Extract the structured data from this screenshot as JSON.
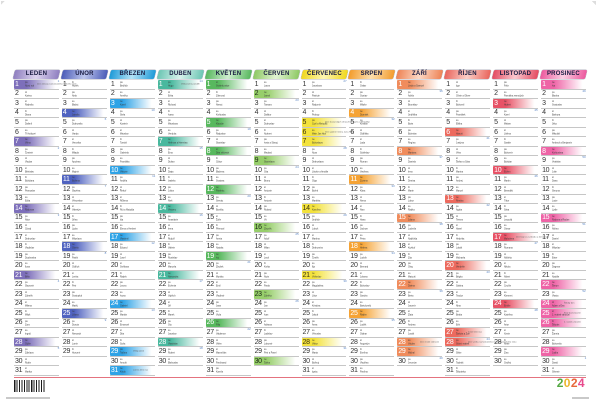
{
  "weekday_abbrs": [
    "po",
    "út",
    "st",
    "čt",
    "pá",
    "so",
    "ne"
  ],
  "footer": {
    "year": "2024",
    "digit_colors": [
      "#54a943",
      "#ecb52c",
      "#e8683a",
      "#e84a8c"
    ]
  },
  "months": [
    {
      "label": "LEDEN",
      "days": 31,
      "first_dow": 0,
      "edge": "#8f7fc0",
      "mid": "#ddd4ef",
      "hl": "#7d6fba",
      "hl_text": "#ffffff",
      "highlights": [
        1,
        7,
        14,
        21,
        28
      ],
      "weeks": {
        "1": "1",
        "8": "2",
        "15": "3",
        "22": "4",
        "29": "5"
      },
      "notes": {
        "1": "Den obnovy samostatného českého státu"
      },
      "names": [
        "Nový rok",
        "Karina",
        "Radmila",
        "Diana",
        "Dalimil",
        "Tři králové",
        "Vilma",
        "Čestmír",
        "Vladan",
        "Břetislav",
        "Bohdana",
        "Pravoslav",
        "Edita",
        "Radovan",
        "Alice",
        "Ctirad",
        "Drahoslav",
        "Vladislav",
        "Doubravka",
        "Ilona",
        "Běla",
        "Slavomír",
        "Zdeněk",
        "Milena",
        "Miloš",
        "Zora",
        "Ingrid",
        "Otýlie",
        "Zdislava",
        "Robin",
        "Marika"
      ]
    },
    {
      "label": "ÚNOR",
      "days": 29,
      "first_dow": 3,
      "edge": "#4b5cb8",
      "mid": "#bcc5ec",
      "hl": "#5063c0",
      "hl_text": "#ffffff",
      "highlights": [
        4,
        11,
        18,
        25
      ],
      "weeks": {
        "5": "6",
        "12": "7",
        "19": "8",
        "26": "9"
      },
      "notes": {},
      "names": [
        "Hynek",
        "Nela",
        "Blažej",
        "Jarmila",
        "Dobromila",
        "Vanda",
        "Veronika",
        "Milada",
        "Apolena",
        "Mojmír",
        "Božena",
        "Slavěna",
        "Věnceslav",
        "Valentýn",
        "Jiřina",
        "Ljuba",
        "Miloslava",
        "Gizela",
        "Patrik",
        "Oldřich",
        "Lenka",
        "Petr",
        "Svatopluk",
        "Matěj",
        "Liliana",
        "Dorota",
        "Alexandr",
        "Lumír",
        "Horymír"
      ]
    },
    {
      "label": "BŘEZEN",
      "days": 31,
      "first_dow": 4,
      "edge": "#1e9ad8",
      "mid": "#b4e2f6",
      "hl": "#2fa3e6",
      "hl_text": "#ffffff",
      "highlights": [
        3,
        10,
        17,
        24,
        29,
        31
      ],
      "weeks": {
        "4": "10",
        "11": "11",
        "18": "12",
        "25": "13"
      },
      "notes": {
        "29": "Velký pátek",
        "31": "začíná letní čas"
      },
      "names": [
        "Bedřich",
        "Anežka",
        "Kamil",
        "Stela",
        "Kazimír",
        "Miroslav",
        "Tomáš",
        "Gabriela",
        "Františka",
        "Viktorie",
        "Anděla",
        "Řehoř",
        "Růžena",
        "Rút a Matylda",
        "Ida",
        "Elena a Herbert",
        "Vlastimil",
        "Eduard",
        "Josef",
        "Světlana",
        "Radek",
        "Leona",
        "Ivona",
        "Gabriel",
        "Marián",
        "Emanuel",
        "Dita",
        "Soňa",
        "Taťána",
        "Arnošt",
        "Kvido"
      ]
    },
    {
      "label": "DUBEN",
      "days": 30,
      "first_dow": 0,
      "edge": "#6cc6b4",
      "mid": "#d9f2ec",
      "hl": "#49b89e",
      "hl_text": "#ffffff",
      "highlights": [
        1,
        7,
        14,
        21,
        28
      ],
      "weeks": {
        "1": "14",
        "8": "15",
        "15": "16",
        "22": "17",
        "29": "18"
      },
      "notes": {
        "1": "Velikonoční pondělí"
      },
      "names": [
        "Hugo",
        "Erika",
        "Richard",
        "Ivana",
        "Miroslava",
        "Vendula",
        "Heřman a Hermína",
        "Ema",
        "Dušan",
        "Darja",
        "Izabela",
        "Julius",
        "Aleš",
        "Vincenc",
        "Anastázie",
        "Irena",
        "Rudolf",
        "Valérie",
        "Rostislav",
        "Marcela",
        "Alexandra",
        "Evženie",
        "Vojtěch",
        "Jiří",
        "Marek",
        "Oto",
        "Jaroslav",
        "Vlastislav",
        "Robert",
        "Blahoslav"
      ]
    },
    {
      "label": "KVĚTEN",
      "days": 31,
      "first_dow": 2,
      "edge": "#58b85e",
      "mid": "#cfedcf",
      "hl": "#58b85e",
      "hl_text": "#ffffff",
      "highlights": [
        1,
        5,
        8,
        12,
        19,
        26
      ],
      "weeks": {
        "6": "19",
        "13": "20",
        "20": "21",
        "27": "22"
      },
      "notes": {},
      "names": [
        "Svátek práce",
        "Zikmund",
        "Alexej",
        "Květoslav",
        "Klaudie",
        "Radoslav",
        "Stanislav",
        "Den vítězství",
        "Ctibor",
        "Blažena",
        "Svatava",
        "Pankrác",
        "Servác",
        "Bonifác",
        "Žofie",
        "Přemysl",
        "Aneta",
        "Nataša",
        "Ivo",
        "Zbyšek",
        "Monika",
        "Emil",
        "Vladimír",
        "Jana",
        "Viola",
        "Filip",
        "Valdemar",
        "Vilém",
        "Maxmilián",
        "Ferdinand",
        "Kamila"
      ]
    },
    {
      "label": "ČERVEN",
      "days": 30,
      "first_dow": 5,
      "edge": "#8ec964",
      "mid": "#e2f3d3",
      "hl": "#97ce6b",
      "hl_text": "#1a2a14",
      "highlights": [
        2,
        9,
        16,
        23,
        30
      ],
      "weeks": {
        "3": "23",
        "10": "24",
        "17": "25",
        "24": "26"
      },
      "notes": {},
      "names": [
        "Laura",
        "Jarmil",
        "Tamara",
        "Dalibor",
        "Dobroslav",
        "Norbert",
        "Iveta a Slavoj",
        "Medard",
        "Stanislava",
        "Gita",
        "Bruno",
        "Antonie",
        "Antonín",
        "Roland",
        "Vít",
        "Zbyněk",
        "Adolf",
        "Milan",
        "Leoš",
        "Květa",
        "Alois",
        "Pavla",
        "Zdeňka",
        "Jan",
        "Ivan",
        "Adriana",
        "Ladislav",
        "Lubomír",
        "Petr a Pavel",
        "Šárka"
      ]
    },
    {
      "label": "ČERVENEC",
      "days": 31,
      "first_dow": 0,
      "edge": "#f0d71c",
      "mid": "#fdf6b4",
      "hl": "#f3e23c",
      "hl_text": "#3a3210",
      "highlights": [
        5,
        6,
        7,
        14,
        21,
        28
      ],
      "weeks": {
        "1": "27",
        "8": "28",
        "15": "29",
        "22": "30",
        "29": "31"
      },
      "notes": {
        "5": "Den slovanských věrozvěstů Cyrila a Metoděje",
        "6": "Den upálení mistra Jana Husa"
      },
      "names": [
        "Jaroslava",
        "Patricie",
        "Radomír",
        "Prokop",
        "Cyril a Metoděj",
        "Mistr Jan Hus",
        "Bohuslava",
        "Nora",
        "Drahoslava",
        "Libuše a Amálie",
        "Olga",
        "Bořek",
        "Markéta",
        "Karolína",
        "Jindřich",
        "Luboš",
        "Martina",
        "Drahomíra",
        "Čeněk",
        "Ilja",
        "Vítězslav",
        "Magdaléna",
        "Libor",
        "Kristýna",
        "Jakub",
        "Anna",
        "Věroslav",
        "Viktor",
        "Marta",
        "Bořivoj",
        "Ignác"
      ]
    },
    {
      "label": "SRPEN",
      "days": 31,
      "first_dow": 3,
      "edge": "#f39c2c",
      "mid": "#fcdfae",
      "hl": "#f5a335",
      "hl_text": "#ffffff",
      "highlights": [
        4,
        11,
        18,
        25
      ],
      "weeks": {
        "5": "32",
        "12": "33",
        "19": "34",
        "26": "35"
      },
      "notes": {},
      "names": [
        "Oskar",
        "Gustav",
        "Miluše",
        "Dominik",
        "Kristián",
        "Oldřiška",
        "Lada",
        "Soběslav",
        "Roman",
        "Vavřinec",
        "Zuzana",
        "Klára",
        "Alena",
        "Alan",
        "Hana",
        "Jáchym",
        "Petra",
        "Helena",
        "Ludvík",
        "Bernard",
        "Johana",
        "Bohuslav",
        "Sandra",
        "Bartoloměj",
        "Radim",
        "Luděk",
        "Otakar",
        "Augustýn",
        "Evelína",
        "Vladěna",
        "Pavlína"
      ]
    },
    {
      "label": "ZÁŘÍ",
      "days": 30,
      "first_dow": 6,
      "edge": "#ee8456",
      "mid": "#fcd9c6",
      "hl": "#f08c5c",
      "hl_text": "#ffffff",
      "highlights": [
        1,
        8,
        15,
        22,
        28,
        29
      ],
      "weeks": {
        "2": "36",
        "9": "37",
        "16": "38",
        "23": "39",
        "30": "40"
      },
      "notes": {
        "28": "Den české státnosti"
      },
      "names": [
        "Linda a Samuel",
        "Adéla",
        "Bronislav",
        "Jindřiška",
        "Boris",
        "Boleslav",
        "Regína",
        "Mariana",
        "Daniela",
        "Irma",
        "Denisa",
        "Marie",
        "Lubor",
        "Radka",
        "Jolana",
        "Ludmila",
        "Naděžda",
        "Kryštof",
        "Zita",
        "Oleg",
        "Matouš",
        "Darina",
        "Berta",
        "Jaromír",
        "Zlata",
        "Andrea",
        "Jonáš",
        "Václav",
        "Michal",
        "Jeroným"
      ]
    },
    {
      "label": "ŘÍJEN",
      "days": 31,
      "first_dow": 1,
      "edge": "#e9655c",
      "mid": "#fbcfc8",
      "hl": "#ec6a5e",
      "hl_text": "#ffffff",
      "highlights": [
        6,
        13,
        20,
        27,
        28
      ],
      "weeks": {
        "7": "41",
        "14": "42",
        "21": "43",
        "28": "44"
      },
      "notes": {
        "27": "končí letní čas",
        "28": "Den vzniku samostatného československého státu"
      },
      "names": [
        "Igor",
        "Olívie a Oliver",
        "Bohumil",
        "František",
        "Eliška",
        "Hanuš",
        "Justýna",
        "Věra",
        "Štefan a Sára",
        "Marina",
        "Andrej",
        "Marcel",
        "Renáta",
        "Agáta",
        "Tereza",
        "Havel",
        "Hedvika",
        "Lukáš",
        "Michaela",
        "Vendelín",
        "Brigita",
        "Sabina",
        "Teodor",
        "Nina",
        "Beáta",
        "Erik",
        "Šarlota a Zoe",
        "Státní svátek",
        "Silvie",
        "Tadeáš",
        "Štěpánka"
      ]
    },
    {
      "label": "LISTOPAD",
      "days": 30,
      "first_dow": 4,
      "edge": "#e44b61",
      "mid": "#f9c8cf",
      "hl": "#e75266",
      "hl_text": "#ffffff",
      "highlights": [
        3,
        10,
        17,
        24
      ],
      "weeks": {
        "4": "45",
        "11": "46",
        "18": "47",
        "25": "48"
      },
      "notes": {
        "17": "Den boje za svobodu a demokracii"
      },
      "names": [
        "Felix",
        "Památka zesnulých",
        "Hubert",
        "Karel",
        "Miriam",
        "Liběna",
        "Saskie",
        "Bohumír",
        "Bohdan",
        "Evžen",
        "Martin",
        "Benedikt",
        "Tibor",
        "Sáva",
        "Leopold",
        "Otmar",
        "Mahulena",
        "Romana",
        "Alžběta",
        "Nikola",
        "Albert",
        "Cecílie",
        "Klement",
        "Emílie",
        "Kateřina",
        "Artur",
        "Xenie",
        "René",
        "Zina",
        "Ondřej"
      ]
    },
    {
      "label": "PROSINEC",
      "days": 31,
      "first_dow": 6,
      "edge": "#ec599e",
      "mid": "#fbcfe3",
      "hl": "#ee64a6",
      "hl_text": "#ffffff",
      "highlights": [
        1,
        8,
        15,
        22,
        24,
        25,
        26,
        29
      ],
      "weeks": {
        "2": "49",
        "9": "50",
        "16": "51",
        "23": "52",
        "30": "1"
      },
      "notes": {
        "24": "Štědrý den",
        "25": "Boží hod vánoční",
        "26": "2. svátek vánoční"
      },
      "names": [
        "Iva",
        "Blanka",
        "Svatoslav",
        "Barbora",
        "Jitka",
        "Mikuláš",
        "Ambrož a Benjamín",
        "Květoslava",
        "Vratislav",
        "Julie",
        "Dana",
        "Simona",
        "Lucie",
        "Lýdie",
        "Radana a Radan",
        "Albína",
        "Daniel",
        "Miloslav",
        "Ester",
        "Dagmar",
        "Natálie",
        "Šimon",
        "Vlasta",
        "Adam a Eva",
        "1. svátek vánoční",
        "Štěpán",
        "Žaneta",
        "Bohumila",
        "Judita",
        "David",
        "Silvestr"
      ]
    }
  ]
}
